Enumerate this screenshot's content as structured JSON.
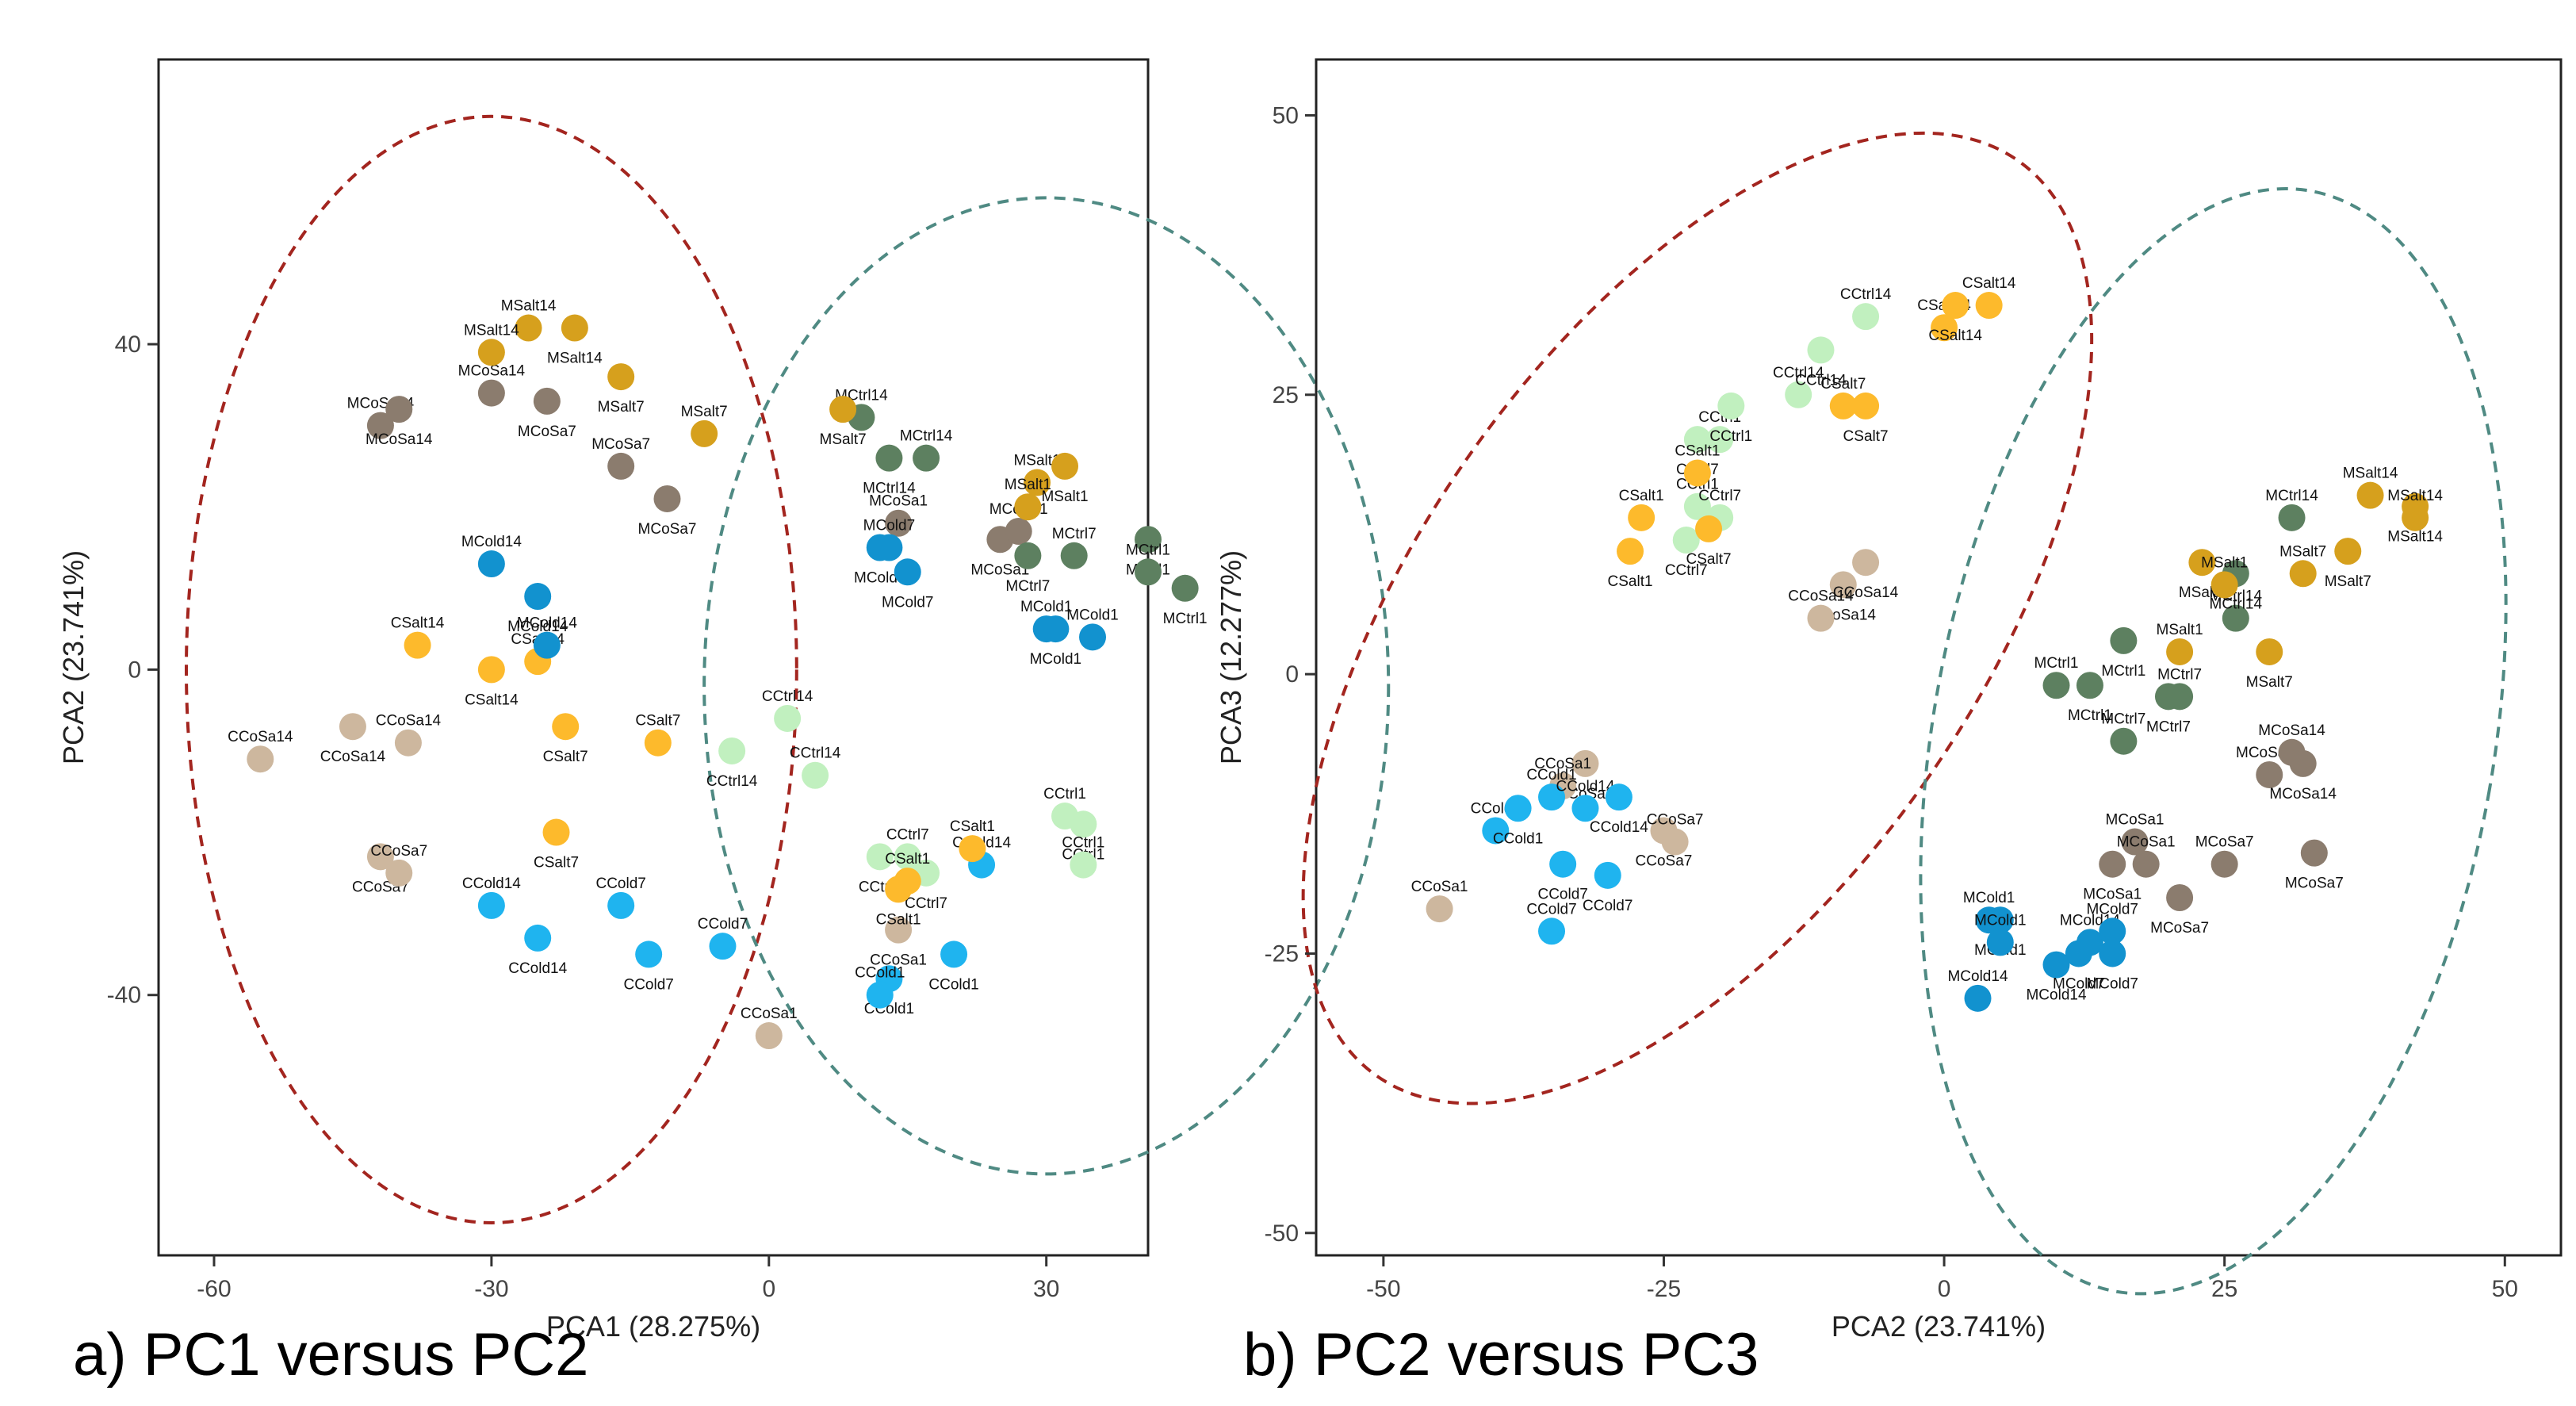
{
  "figure": {
    "panel_a_caption": "a) PC1 versus PC2",
    "panel_b_caption": "b) PC2 versus PC3"
  },
  "colors": {
    "CCoSa": "#cdb79e",
    "CCold": "#1fb4ef",
    "CCtrl": "#c1f0bf",
    "CSalt": "#fdba2c",
    "MCoSa": "#8b7c6e",
    "MCold": "#1292cf",
    "MCtrl": "#5d8060",
    "MSalt": "#d6a01d",
    "ellipse_red": "#a3251f",
    "ellipse_teal": "#4f8a83"
  },
  "chart_data": [
    {
      "type": "scatter",
      "title": "a) PC1 versus PC2",
      "xlabel": "PCA1 (28.275%)",
      "ylabel": "PCA2 (23.741%)",
      "xlim": [
        -66,
        41
      ],
      "ylim": [
        -72,
        75
      ],
      "xticks": [
        -60,
        -30,
        0,
        30
      ],
      "yticks": [
        -40,
        0,
        40
      ],
      "xtick_labels": [
        "-60",
        "-30",
        "0",
        "30"
      ],
      "ytick_labels": [
        "-40",
        "0",
        "40"
      ],
      "grid": false,
      "ellipses": [
        {
          "cx": -30,
          "cy": 0,
          "rx": 33,
          "ry": 68,
          "color": "ellipse_red"
        },
        {
          "cx": 30,
          "cy": -2,
          "rx": 37,
          "ry": 60,
          "color": "ellipse_teal"
        }
      ],
      "series": [
        {
          "name": "CCoSa",
          "color": "CCoSa",
          "points": [
            [
              -55,
              -11,
              "CCoSa14"
            ],
            [
              -45,
              -7,
              "CCoSa14"
            ],
            [
              -39,
              -9,
              "CCoSa14"
            ],
            [
              -42,
              -23,
              "CCoSa7"
            ],
            [
              -40,
              -25,
              "CCoSa7"
            ],
            [
              14,
              -32,
              "CCoSa1"
            ],
            [
              0,
              -45,
              "CCoSa1"
            ]
          ]
        },
        {
          "name": "CCold",
          "color": "CCold",
          "points": [
            [
              -30,
              -29,
              "CCold14"
            ],
            [
              -25,
              -33,
              "CCold14"
            ],
            [
              -16,
              -29,
              "CCold7"
            ],
            [
              -13,
              -35,
              "CCold7"
            ],
            [
              -5,
              -34,
              "CCold7"
            ],
            [
              13,
              -38,
              "CCold1"
            ],
            [
              12,
              -40,
              "CCold1"
            ],
            [
              20,
              -35,
              "CCold1"
            ],
            [
              23,
              -24,
              "CCold14"
            ]
          ]
        },
        {
          "name": "CCtrl",
          "color": "CCtrl",
          "points": [
            [
              2,
              -6,
              "CCtrl14"
            ],
            [
              -4,
              -10,
              "CCtrl14"
            ],
            [
              5,
              -13,
              "CCtrl14"
            ],
            [
              12,
              -23,
              "CCtrl7"
            ],
            [
              15,
              -23,
              "CCtrl7"
            ],
            [
              17,
              -25,
              "CCtrl7"
            ],
            [
              32,
              -18,
              "CCtrl1"
            ],
            [
              34,
              -19,
              "CCtrl1"
            ],
            [
              34,
              -24,
              "CCtrl1"
            ]
          ]
        },
        {
          "name": "CSalt",
          "color": "CSalt",
          "points": [
            [
              -38,
              3,
              "CSalt14"
            ],
            [
              -30,
              0,
              "CSalt14"
            ],
            [
              -25,
              1,
              "CSalt14"
            ],
            [
              -22,
              -7,
              "CSalt7"
            ],
            [
              -12,
              -9,
              "CSalt7"
            ],
            [
              -23,
              -20,
              "CSalt7"
            ],
            [
              22,
              -22,
              "CSalt1"
            ],
            [
              14,
              -27,
              "CSalt1"
            ],
            [
              15,
              -26,
              "CSalt1"
            ]
          ]
        },
        {
          "name": "MCoSa",
          "color": "MCoSa",
          "points": [
            [
              -42,
              30,
              "MCoSa14"
            ],
            [
              -40,
              32,
              "MCoSa14"
            ],
            [
              -30,
              34,
              "MCoSa14"
            ],
            [
              -24,
              33,
              "MCoSa7"
            ],
            [
              -16,
              25,
              "MCoSa7"
            ],
            [
              -11,
              21,
              "MCoSa7"
            ],
            [
              14,
              18,
              "MCoSa1"
            ],
            [
              25,
              16,
              "MCoSa1"
            ],
            [
              27,
              17,
              "MCoSa1"
            ]
          ]
        },
        {
          "name": "MCold",
          "color": "MCold",
          "points": [
            [
              -30,
              13,
              "MCold14"
            ],
            [
              -25,
              9,
              "MCold14"
            ],
            [
              -24,
              3,
              "MCold14"
            ],
            [
              12,
              15,
              "MCold7"
            ],
            [
              13,
              15,
              "MCold7"
            ],
            [
              15,
              12,
              "MCold7"
            ],
            [
              30,
              5,
              "MCold1"
            ],
            [
              31,
              5,
              "MCold1"
            ],
            [
              35,
              4,
              "MCold1"
            ]
          ]
        },
        {
          "name": "MCtrl",
          "color": "MCtrl",
          "points": [
            [
              10,
              31,
              "MCtrl14"
            ],
            [
              13,
              26,
              "MCtrl14"
            ],
            [
              17,
              26,
              "MCtrl14"
            ],
            [
              28,
              14,
              "MCtrl7"
            ],
            [
              33,
              14,
              "MCtrl7"
            ],
            [
              41,
              16,
              "MCtrl1"
            ],
            [
              41,
              12,
              "MCtrl1"
            ],
            [
              45,
              10,
              "MCtrl1"
            ]
          ]
        },
        {
          "name": "MSalt",
          "color": "MSalt",
          "points": [
            [
              -26,
              42,
              "MSalt14"
            ],
            [
              -21,
              42,
              "MSalt14"
            ],
            [
              -30,
              39,
              "MSalt14"
            ],
            [
              -16,
              36,
              "MSalt7"
            ],
            [
              -7,
              29,
              "MSalt7"
            ],
            [
              8,
              32,
              "MSalt7"
            ],
            [
              29,
              23,
              "MSalt1"
            ],
            [
              32,
              25,
              "MSalt1"
            ],
            [
              28,
              20,
              "MSalt1"
            ]
          ]
        }
      ]
    },
    {
      "type": "scatter",
      "title": "b) PC2 versus PC3",
      "xlabel": "PCA2 (23.741%)",
      "ylabel": "PCA3 (12.277%)",
      "xlim": [
        -56,
        55
      ],
      "ylim": [
        -52,
        55
      ],
      "xticks": [
        -50,
        -25,
        0,
        25,
        50
      ],
      "yticks": [
        -50,
        -25,
        0,
        25,
        50
      ],
      "xtick_labels": [
        "-50",
        "-25",
        "0",
        "25",
        "50"
      ],
      "ytick_labels": [
        "-50",
        "-25",
        "0",
        "25",
        "50"
      ],
      "grid": false,
      "ellipses": [
        {
          "cx": -22,
          "cy": 5,
          "rx": 25,
          "ry": 50,
          "rotate": 35,
          "color": "ellipse_red"
        },
        {
          "cx": 24,
          "cy": -6,
          "rx": 25,
          "ry": 50,
          "rotate": 10,
          "color": "ellipse_teal"
        }
      ],
      "series": [
        {
          "name": "CCoSa",
          "color": "CCoSa",
          "points": [
            [
              -45,
              -21,
              "CCoSa1"
            ],
            [
              -32,
              -8,
              "CCoSa1"
            ],
            [
              -34,
              -10,
              "CCoSa1"
            ],
            [
              -25,
              -14,
              "CCoSa7"
            ],
            [
              -24,
              -15,
              "CCoSa7"
            ],
            [
              -9,
              8,
              "CCoSa14"
            ],
            [
              -11,
              5,
              "CCoSa14"
            ],
            [
              -7,
              10,
              "CCoSa14"
            ]
          ]
        },
        {
          "name": "CCold",
          "color": "CCold",
          "points": [
            [
              -40,
              -14,
              "CCold1"
            ],
            [
              -38,
              -12,
              "CCold1"
            ],
            [
              -35,
              -11,
              "CCold1"
            ],
            [
              -34,
              -17,
              "CCold7"
            ],
            [
              -35,
              -23,
              "CCold7"
            ],
            [
              -30,
              -18,
              "CCold7"
            ],
            [
              -32,
              -12,
              "CCold14"
            ],
            [
              -29,
              -11,
              "CCold14"
            ]
          ]
        },
        {
          "name": "CCtrl",
          "color": "CCtrl",
          "points": [
            [
              -22,
              15,
              "CCtrl1"
            ],
            [
              -23,
              12,
              "CCtrl7"
            ],
            [
              -20,
              14,
              "CCtrl7"
            ],
            [
              -22,
              21,
              "CCtrl7"
            ],
            [
              -20,
              21,
              "CCtrl1"
            ],
            [
              -19,
              24,
              "CCtrl1"
            ],
            [
              -13,
              25,
              "CCtrl14"
            ],
            [
              -11,
              29,
              "CCtrl14"
            ],
            [
              -7,
              32,
              "CCtrl14"
            ]
          ]
        },
        {
          "name": "CSalt",
          "color": "CSalt",
          "points": [
            [
              -27,
              14,
              "CSalt1"
            ],
            [
              -28,
              11,
              "CSalt1"
            ],
            [
              -22,
              18,
              "CSalt1"
            ],
            [
              -21,
              13,
              "CSalt7"
            ],
            [
              -9,
              24,
              "CSalt7"
            ],
            [
              -7,
              24,
              "CSalt7"
            ],
            [
              0,
              31,
              "CSalt14"
            ],
            [
              1,
              33,
              "CSalt14"
            ],
            [
              4,
              33,
              "CSalt14"
            ]
          ]
        },
        {
          "name": "MCoSa",
          "color": "MCoSa",
          "points": [
            [
              17,
              -15,
              "MCoSa1"
            ],
            [
              15,
              -17,
              "MCoSa1"
            ],
            [
              18,
              -17,
              "MCoSa1"
            ],
            [
              21,
              -20,
              "MCoSa7"
            ],
            [
              25,
              -17,
              "MCoSa7"
            ],
            [
              33,
              -16,
              "MCoSa7"
            ],
            [
              29,
              -9,
              "MCoSa14"
            ],
            [
              32,
              -8,
              "MCoSa14"
            ],
            [
              31,
              -7,
              "MCoSa14"
            ]
          ]
        },
        {
          "name": "MCold",
          "color": "MCold",
          "points": [
            [
              4,
              -22,
              "MCold1"
            ],
            [
              5,
              -22,
              "MCold1"
            ],
            [
              5,
              -24,
              "MCold1"
            ],
            [
              10,
              -26,
              "MCold14"
            ],
            [
              13,
              -24,
              "MCold14"
            ],
            [
              12,
              -25,
              "MCold7"
            ],
            [
              15,
              -23,
              "MCold7"
            ],
            [
              15,
              -25,
              "MCold7"
            ],
            [
              3,
              -29,
              "MCold14"
            ]
          ]
        },
        {
          "name": "MCtrl",
          "color": "MCtrl",
          "points": [
            [
              10,
              -1,
              "MCtrl1"
            ],
            [
              13,
              -1,
              "MCtrl1"
            ],
            [
              16,
              -6,
              "MCtrl7"
            ],
            [
              20,
              -2,
              "MCtrl7"
            ],
            [
              21,
              -2,
              "MCtrl7"
            ],
            [
              16,
              3,
              "MCtrl1"
            ],
            [
              26,
              5,
              "MCtrl14"
            ],
            [
              26,
              9,
              "MCtrl14"
            ],
            [
              31,
              14,
              "MCtrl14"
            ]
          ]
        },
        {
          "name": "MSalt",
          "color": "MSalt",
          "points": [
            [
              21,
              2,
              "MSalt1"
            ],
            [
              23,
              10,
              "MSalt1"
            ],
            [
              25,
              8,
              "MSalt1"
            ],
            [
              29,
              2,
              "MSalt7"
            ],
            [
              32,
              9,
              "MSalt7"
            ],
            [
              36,
              11,
              "MSalt7"
            ],
            [
              38,
              16,
              "MSalt14"
            ],
            [
              42,
              15,
              "MSalt14"
            ],
            [
              42,
              14,
              "MSalt14"
            ]
          ]
        }
      ]
    }
  ]
}
